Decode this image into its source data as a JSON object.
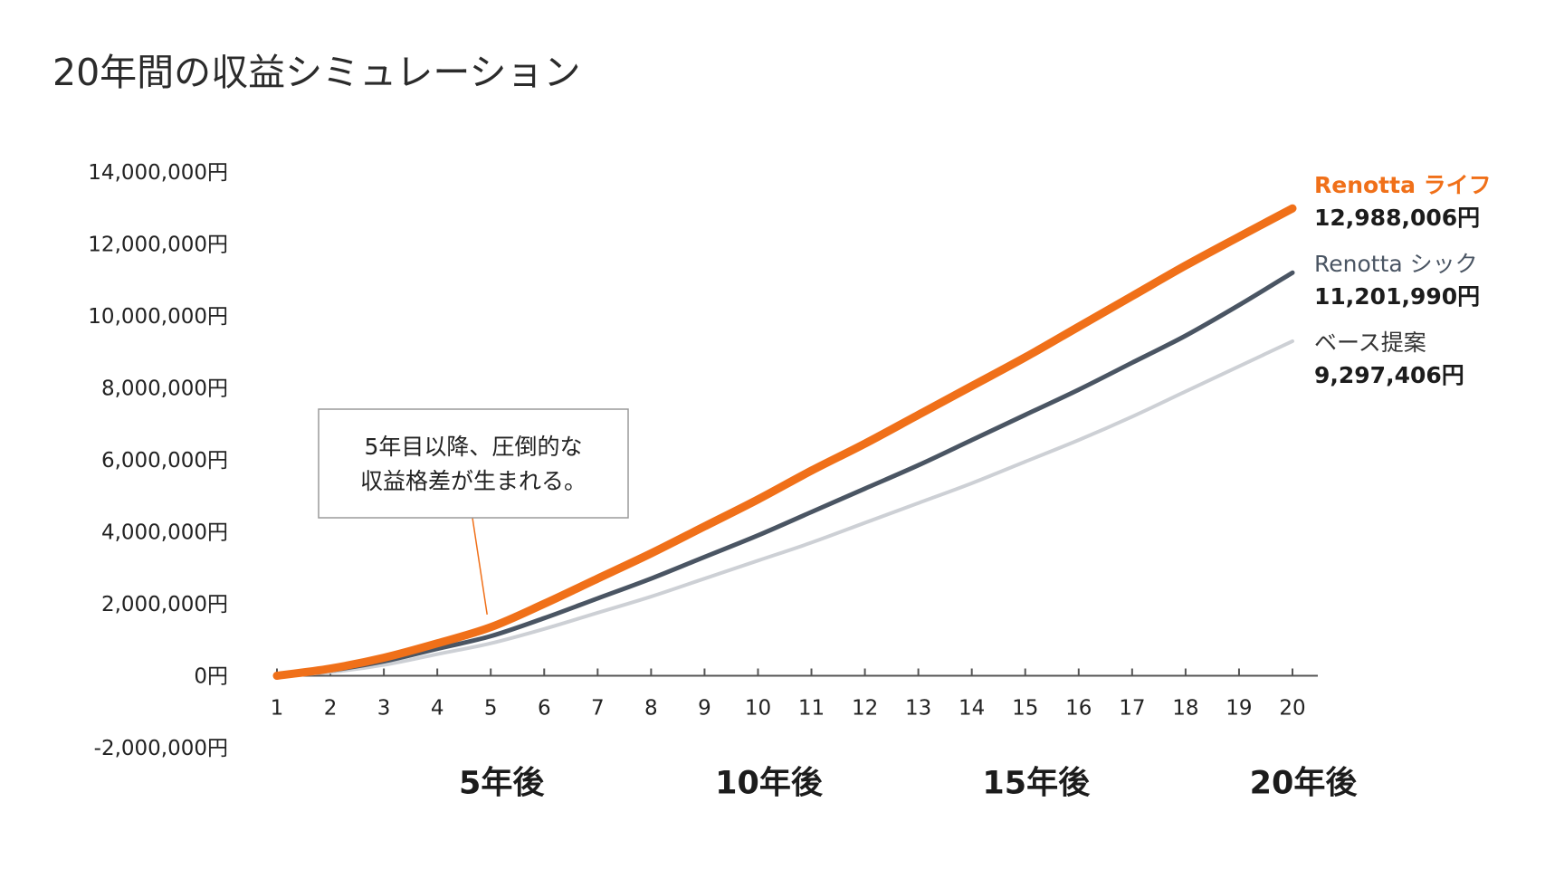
{
  "title": "20年間の収益シミュレーション",
  "chart_data": {
    "type": "line",
    "title": "20年間の収益シミュレーション",
    "xlabel": "",
    "ylabel": "",
    "x": [
      1,
      2,
      3,
      4,
      5,
      6,
      7,
      8,
      9,
      10,
      11,
      12,
      13,
      14,
      15,
      16,
      17,
      18,
      19,
      20
    ],
    "ylim": [
      -2000000,
      14000000
    ],
    "y_ticks": [
      {
        "value": 14000000,
        "label": "14,000,000円"
      },
      {
        "value": 12000000,
        "label": "12,000,000円"
      },
      {
        "value": 10000000,
        "label": "10,000,000円"
      },
      {
        "value": 8000000,
        "label": "8,000,000円"
      },
      {
        "value": 6000000,
        "label": "6,000,000円"
      },
      {
        "value": 4000000,
        "label": "4,000,000円"
      },
      {
        "value": 2000000,
        "label": "2,000,000円"
      },
      {
        "value": 0,
        "label": "0円"
      },
      {
        "value": -2000000,
        "label": "-2,000,000円"
      }
    ],
    "period_labels": [
      {
        "x": 5,
        "label": "5年後"
      },
      {
        "x": 10,
        "label": "10年後"
      },
      {
        "x": 15,
        "label": "15年後"
      },
      {
        "x": 20,
        "label": "20年後"
      }
    ],
    "grid": false,
    "legend_position": "right",
    "series": [
      {
        "name": "Renotta ライフ",
        "value_label": "12,988,006円",
        "color": "#f07019",
        "values": [
          0,
          200000,
          500000,
          900000,
          1350000,
          2000000,
          2700000,
          3400000,
          4150000,
          4900000,
          5700000,
          6450000,
          7250000,
          8050000,
          8850000,
          9700000,
          10550000,
          11400000,
          12200000,
          12988006
        ]
      },
      {
        "name": "Renotta シック",
        "value_label": "11,201,990円",
        "color": "#4a5563",
        "values": [
          0,
          150000,
          400000,
          750000,
          1100000,
          1600000,
          2150000,
          2700000,
          3300000,
          3900000,
          4550000,
          5200000,
          5850000,
          6550000,
          7250000,
          7950000,
          8700000,
          9450000,
          10300000,
          11201990
        ]
      },
      {
        "name": "ベース提案",
        "value_label": "9,297,406円",
        "color": "#cdd0d5",
        "values": [
          0,
          100000,
          300000,
          600000,
          900000,
          1300000,
          1750000,
          2200000,
          2700000,
          3200000,
          3700000,
          4250000,
          4800000,
          5350000,
          5950000,
          6550000,
          7200000,
          7900000,
          8600000,
          9297406
        ]
      }
    ],
    "annotation": {
      "lines": [
        "5年目以降、圧倒的な",
        "収益格差が生まれる。"
      ],
      "target_x": 5,
      "line_color": "#f07019",
      "border_color": "#9a9a9a"
    }
  }
}
